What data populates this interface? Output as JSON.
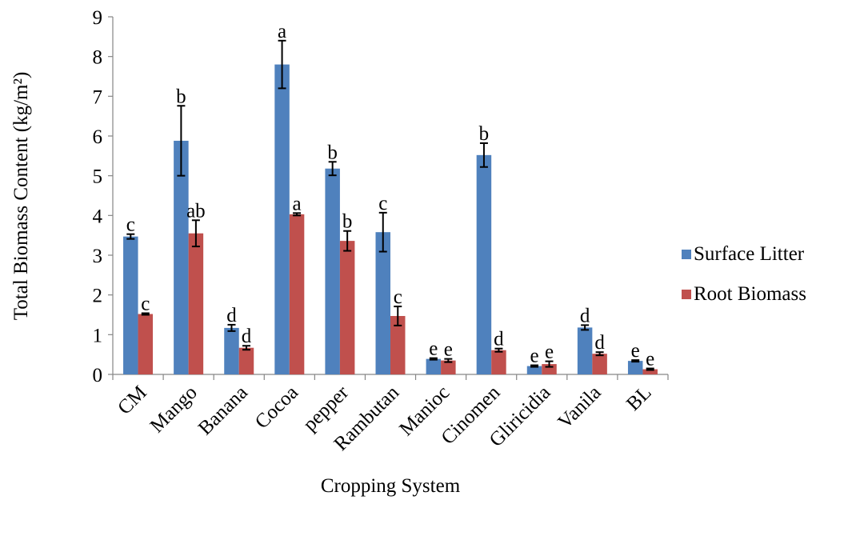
{
  "chart_data": {
    "type": "bar",
    "title": "",
    "xlabel": "Cropping System",
    "ylabel": "Total Biomass Content (kg/m²)",
    "ylim": [
      0,
      9
    ],
    "yticks": [
      "0",
      "1",
      "2",
      "3",
      "4",
      "5",
      "6",
      "7",
      "8",
      "9"
    ],
    "grid": false,
    "legend_position": "right",
    "categories": [
      "CM",
      "Mango",
      "Banana",
      "Cocoa",
      "pepper",
      "Rambutan",
      "Manioc",
      "Cinomen",
      "Gliricidia",
      "Vanila",
      "BL"
    ],
    "series": [
      {
        "name": "Surface Litter",
        "color": "#4F81BD",
        "values": [
          3.47,
          5.88,
          1.17,
          7.8,
          5.18,
          3.58,
          0.39,
          5.52,
          0.21,
          1.18,
          0.34
        ],
        "errors": [
          0.06,
          0.88,
          0.08,
          0.6,
          0.17,
          0.49,
          0.02,
          0.3,
          0.02,
          0.06,
          0.02
        ],
        "letters": [
          "c",
          "b",
          "d",
          "a",
          "b",
          "c",
          "e",
          "b",
          "e",
          "d",
          "e"
        ]
      },
      {
        "name": "Root Biomass",
        "color": "#C0504D",
        "values": [
          1.52,
          3.55,
          0.67,
          4.03,
          3.36,
          1.47,
          0.35,
          0.61,
          0.26,
          0.52,
          0.13
        ],
        "errors": [
          0.02,
          0.33,
          0.05,
          0.03,
          0.25,
          0.24,
          0.04,
          0.04,
          0.07,
          0.04,
          0.02
        ],
        "letters": [
          "c",
          "ab",
          "d",
          "a",
          "b",
          "c",
          "e",
          "d",
          "e",
          "d",
          "e"
        ]
      }
    ]
  }
}
